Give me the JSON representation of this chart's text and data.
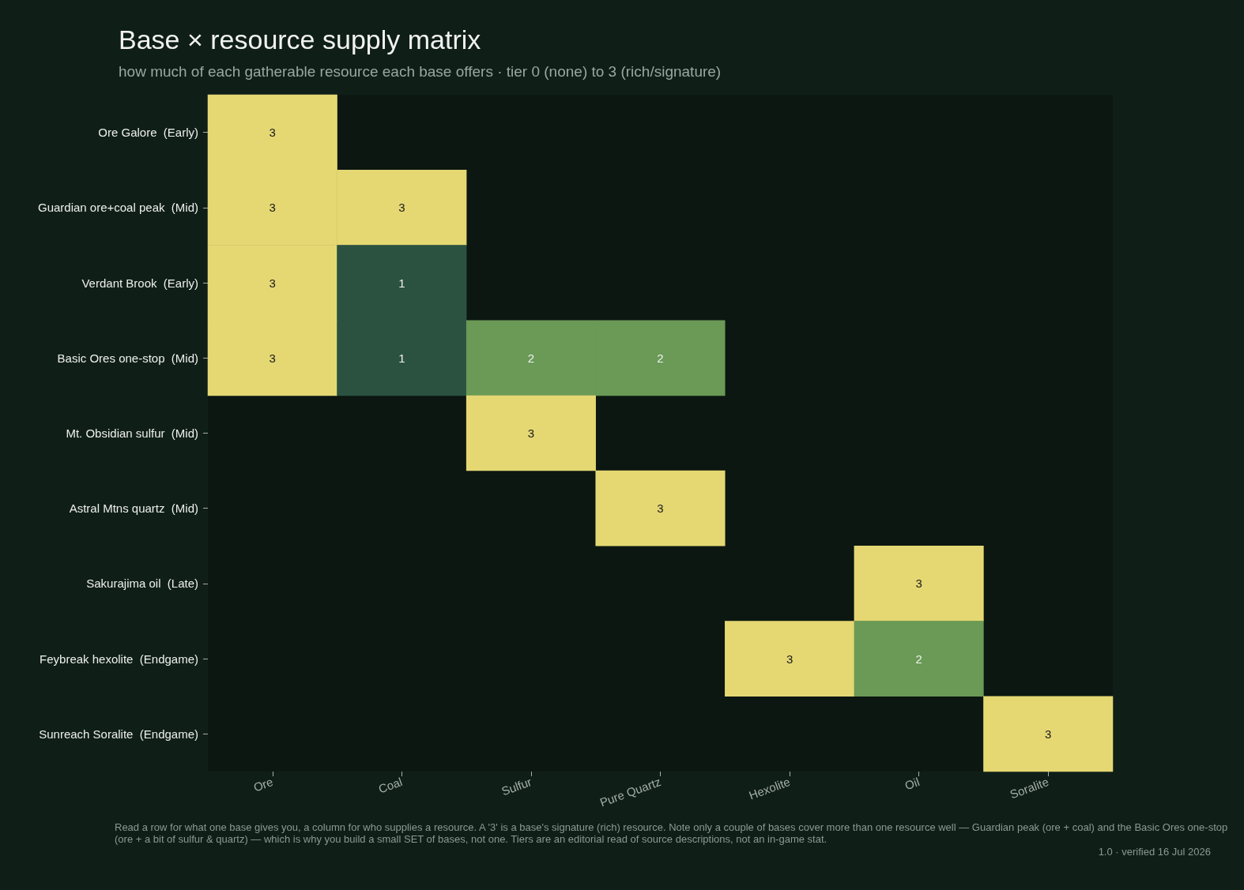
{
  "chart_data": {
    "type": "heatmap",
    "title": "Base × resource supply matrix",
    "subtitle": "how much of each gatherable resource each base offers · tier 0 (none) to 3 (rich/signature)",
    "categories": [
      "Ore",
      "Coal",
      "Sulfur",
      "Pure Quartz",
      "Hexolite",
      "Oil",
      "Soralite"
    ],
    "y_categories": [
      "Ore Galore  (Early)",
      "Guardian ore+coal peak  (Mid)",
      "Verdant Brook  (Early)",
      "Basic Ores one-stop  (Mid)",
      "Mt. Obsidian sulfur  (Mid)",
      "Astral Mtns quartz  (Mid)",
      "Sakurajima oil  (Late)",
      "Feybreak hexolite  (Endgame)",
      "Sunreach Soralite  (Endgame)"
    ],
    "cells": [
      [
        3,
        null,
        null,
        null,
        null,
        null,
        null
      ],
      [
        3,
        3,
        null,
        null,
        null,
        null,
        null
      ],
      [
        3,
        1,
        null,
        null,
        null,
        null,
        null
      ],
      [
        3,
        1,
        2,
        2,
        null,
        null,
        null
      ],
      [
        null,
        null,
        3,
        null,
        null,
        null,
        null
      ],
      [
        null,
        null,
        null,
        3,
        null,
        null,
        null
      ],
      [
        null,
        null,
        null,
        null,
        null,
        3,
        null
      ],
      [
        null,
        null,
        null,
        null,
        3,
        2,
        null
      ],
      [
        null,
        null,
        null,
        null,
        null,
        null,
        3
      ]
    ],
    "colors": [
      "#2b5240",
      "#6a9a56",
      "#e5d873"
    ],
    "data_labels": true,
    "annotations": [
      "Read a row for what one base gives you, a column for who supplies a resource. A '3' is a base's signature (rich) resource. Note only a couple of bases cover more than one resource well — Guardian peak (ore + coal) and the Basic Ores one-stop (ore + a bit of sulfur & quartz) — which is why you build a small SET of bases, not one. Tiers are an editorial read of source descriptions, not an in-game stat.",
      "1.0 · verified 16 Jul 2026"
    ]
  }
}
